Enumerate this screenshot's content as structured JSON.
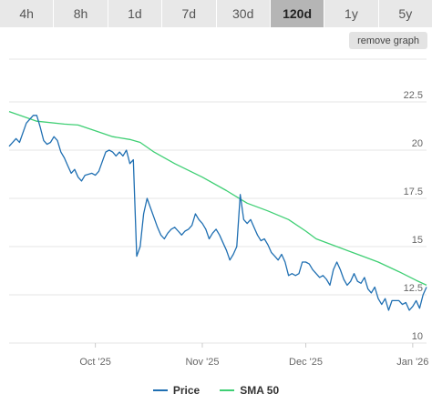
{
  "tabs": [
    {
      "label": "4h"
    },
    {
      "label": "8h"
    },
    {
      "label": "1d"
    },
    {
      "label": "7d"
    },
    {
      "label": "30d"
    },
    {
      "label": "120d",
      "active": true
    },
    {
      "label": "1y"
    },
    {
      "label": "5y"
    }
  ],
  "controls": {
    "remove_graph": "remove graph"
  },
  "colors": {
    "price": "#1f6fb2",
    "sma": "#3fcf74",
    "grid": "#e6e6e6",
    "tab_active": "#b5b5b5",
    "tab": "#e8e8e8"
  },
  "chart_data": {
    "type": "line",
    "ylim": [
      10,
      22.5
    ],
    "yticks": [
      10,
      12.5,
      15,
      17.5,
      20,
      22.5
    ],
    "ytick_labels": [
      "10",
      "12.5",
      "15",
      "17.5",
      "20",
      "22.5"
    ],
    "xlim": [
      "2025-09-06",
      "2026-01-05"
    ],
    "xticks": [
      {
        "label": "Oct '25",
        "date": "2025-10-01"
      },
      {
        "label": "Nov '25",
        "date": "2025-11-01"
      },
      {
        "label": "Dec '25",
        "date": "2025-12-01"
      },
      {
        "label": "Jan '26",
        "date": "2026-01-01"
      }
    ],
    "legend": "bottom-center",
    "grid": true,
    "series": [
      {
        "name": "Price",
        "color": "#1f6fb2",
        "points": [
          [
            "2025-09-06",
            20.2
          ],
          [
            "2025-09-08",
            20.6
          ],
          [
            "2025-09-09",
            20.4
          ],
          [
            "2025-09-11",
            21.4
          ],
          [
            "2025-09-13",
            21.8
          ],
          [
            "2025-09-14",
            21.8
          ],
          [
            "2025-09-15",
            21.2
          ],
          [
            "2025-09-16",
            20.5
          ],
          [
            "2025-09-17",
            20.3
          ],
          [
            "2025-09-18",
            20.4
          ],
          [
            "2025-09-19",
            20.7
          ],
          [
            "2025-09-20",
            20.5
          ],
          [
            "2025-09-21",
            19.9
          ],
          [
            "2025-09-22",
            19.6
          ],
          [
            "2025-09-23",
            19.2
          ],
          [
            "2025-09-24",
            18.8
          ],
          [
            "2025-09-25",
            19.0
          ],
          [
            "2025-09-26",
            18.6
          ],
          [
            "2025-09-27",
            18.4
          ],
          [
            "2025-09-28",
            18.7
          ],
          [
            "2025-09-30",
            18.8
          ],
          [
            "2025-10-01",
            18.7
          ],
          [
            "2025-10-02",
            18.9
          ],
          [
            "2025-10-03",
            19.4
          ],
          [
            "2025-10-04",
            19.9
          ],
          [
            "2025-10-05",
            20.0
          ],
          [
            "2025-10-06",
            19.9
          ],
          [
            "2025-10-07",
            19.7
          ],
          [
            "2025-10-08",
            19.9
          ],
          [
            "2025-10-09",
            19.7
          ],
          [
            "2025-10-10",
            20.0
          ],
          [
            "2025-10-11",
            19.3
          ],
          [
            "2025-10-12",
            19.5
          ],
          [
            "2025-10-13",
            14.5
          ],
          [
            "2025-10-14",
            15.0
          ],
          [
            "2025-10-15",
            16.7
          ],
          [
            "2025-10-16",
            17.5
          ],
          [
            "2025-10-17",
            17.0
          ],
          [
            "2025-10-18",
            16.5
          ],
          [
            "2025-10-19",
            16.0
          ],
          [
            "2025-10-20",
            15.6
          ],
          [
            "2025-10-21",
            15.4
          ],
          [
            "2025-10-22",
            15.7
          ],
          [
            "2025-10-23",
            15.9
          ],
          [
            "2025-10-24",
            16.0
          ],
          [
            "2025-10-25",
            15.8
          ],
          [
            "2025-10-26",
            15.6
          ],
          [
            "2025-10-27",
            15.8
          ],
          [
            "2025-10-28",
            15.9
          ],
          [
            "2025-10-29",
            16.1
          ],
          [
            "2025-10-30",
            16.7
          ],
          [
            "2025-10-31",
            16.4
          ],
          [
            "2025-11-01",
            16.2
          ],
          [
            "2025-11-02",
            15.9
          ],
          [
            "2025-11-03",
            15.4
          ],
          [
            "2025-11-04",
            15.7
          ],
          [
            "2025-11-05",
            15.9
          ],
          [
            "2025-11-06",
            15.6
          ],
          [
            "2025-11-07",
            15.2
          ],
          [
            "2025-11-08",
            14.8
          ],
          [
            "2025-11-09",
            14.3
          ],
          [
            "2025-11-10",
            14.6
          ],
          [
            "2025-11-11",
            15.0
          ],
          [
            "2025-11-12",
            17.7
          ],
          [
            "2025-11-13",
            16.4
          ],
          [
            "2025-11-14",
            16.2
          ],
          [
            "2025-11-15",
            16.4
          ],
          [
            "2025-11-16",
            16.0
          ],
          [
            "2025-11-17",
            15.6
          ],
          [
            "2025-11-18",
            15.3
          ],
          [
            "2025-11-19",
            15.4
          ],
          [
            "2025-11-20",
            15.1
          ],
          [
            "2025-11-21",
            14.7
          ],
          [
            "2025-11-22",
            14.5
          ],
          [
            "2025-11-23",
            14.3
          ],
          [
            "2025-11-24",
            14.6
          ],
          [
            "2025-11-25",
            14.2
          ],
          [
            "2025-11-26",
            13.5
          ],
          [
            "2025-11-27",
            13.6
          ],
          [
            "2025-11-28",
            13.5
          ],
          [
            "2025-11-29",
            13.6
          ],
          [
            "2025-11-30",
            14.2
          ],
          [
            "2025-12-01",
            14.2
          ],
          [
            "2025-12-02",
            14.1
          ],
          [
            "2025-12-03",
            13.8
          ],
          [
            "2025-12-04",
            13.6
          ],
          [
            "2025-12-05",
            13.4
          ],
          [
            "2025-12-06",
            13.5
          ],
          [
            "2025-12-07",
            13.3
          ],
          [
            "2025-12-08",
            13.0
          ],
          [
            "2025-12-09",
            13.8
          ],
          [
            "2025-12-10",
            14.2
          ],
          [
            "2025-12-11",
            13.8
          ],
          [
            "2025-12-12",
            13.3
          ],
          [
            "2025-12-13",
            13.0
          ],
          [
            "2025-12-14",
            13.2
          ],
          [
            "2025-12-15",
            13.6
          ],
          [
            "2025-12-16",
            13.2
          ],
          [
            "2025-12-17",
            13.1
          ],
          [
            "2025-12-18",
            13.4
          ],
          [
            "2025-12-19",
            12.8
          ],
          [
            "2025-12-20",
            12.6
          ],
          [
            "2025-12-21",
            12.9
          ],
          [
            "2025-12-22",
            12.3
          ],
          [
            "2025-12-23",
            12.0
          ],
          [
            "2025-12-24",
            12.3
          ],
          [
            "2025-12-25",
            11.7
          ],
          [
            "2025-12-26",
            12.2
          ],
          [
            "2025-12-28",
            12.2
          ],
          [
            "2025-12-29",
            12.0
          ],
          [
            "2025-12-30",
            12.1
          ],
          [
            "2025-12-31",
            11.7
          ],
          [
            "2026-01-01",
            11.9
          ],
          [
            "2026-01-02",
            12.2
          ],
          [
            "2026-01-03",
            11.8
          ],
          [
            "2026-01-04",
            12.5
          ],
          [
            "2026-01-05",
            12.9
          ]
        ]
      },
      {
        "name": "SMA 50",
        "color": "#3fcf74",
        "points": [
          [
            "2025-09-06",
            22.0
          ],
          [
            "2025-09-14",
            21.5
          ],
          [
            "2025-09-22",
            21.35
          ],
          [
            "2025-09-26",
            21.3
          ],
          [
            "2025-10-01",
            21.0
          ],
          [
            "2025-10-06",
            20.7
          ],
          [
            "2025-10-11",
            20.55
          ],
          [
            "2025-10-14",
            20.4
          ],
          [
            "2025-10-18",
            19.9
          ],
          [
            "2025-10-24",
            19.3
          ],
          [
            "2025-11-01",
            18.6
          ],
          [
            "2025-11-08",
            17.9
          ],
          [
            "2025-11-14",
            17.25
          ],
          [
            "2025-11-20",
            16.85
          ],
          [
            "2025-11-26",
            16.4
          ],
          [
            "2025-12-01",
            15.8
          ],
          [
            "2025-12-04",
            15.4
          ],
          [
            "2025-12-10",
            15.0
          ],
          [
            "2025-12-16",
            14.6
          ],
          [
            "2025-12-22",
            14.2
          ],
          [
            "2025-12-28",
            13.7
          ],
          [
            "2026-01-02",
            13.25
          ],
          [
            "2026-01-05",
            13.0
          ]
        ]
      }
    ]
  }
}
